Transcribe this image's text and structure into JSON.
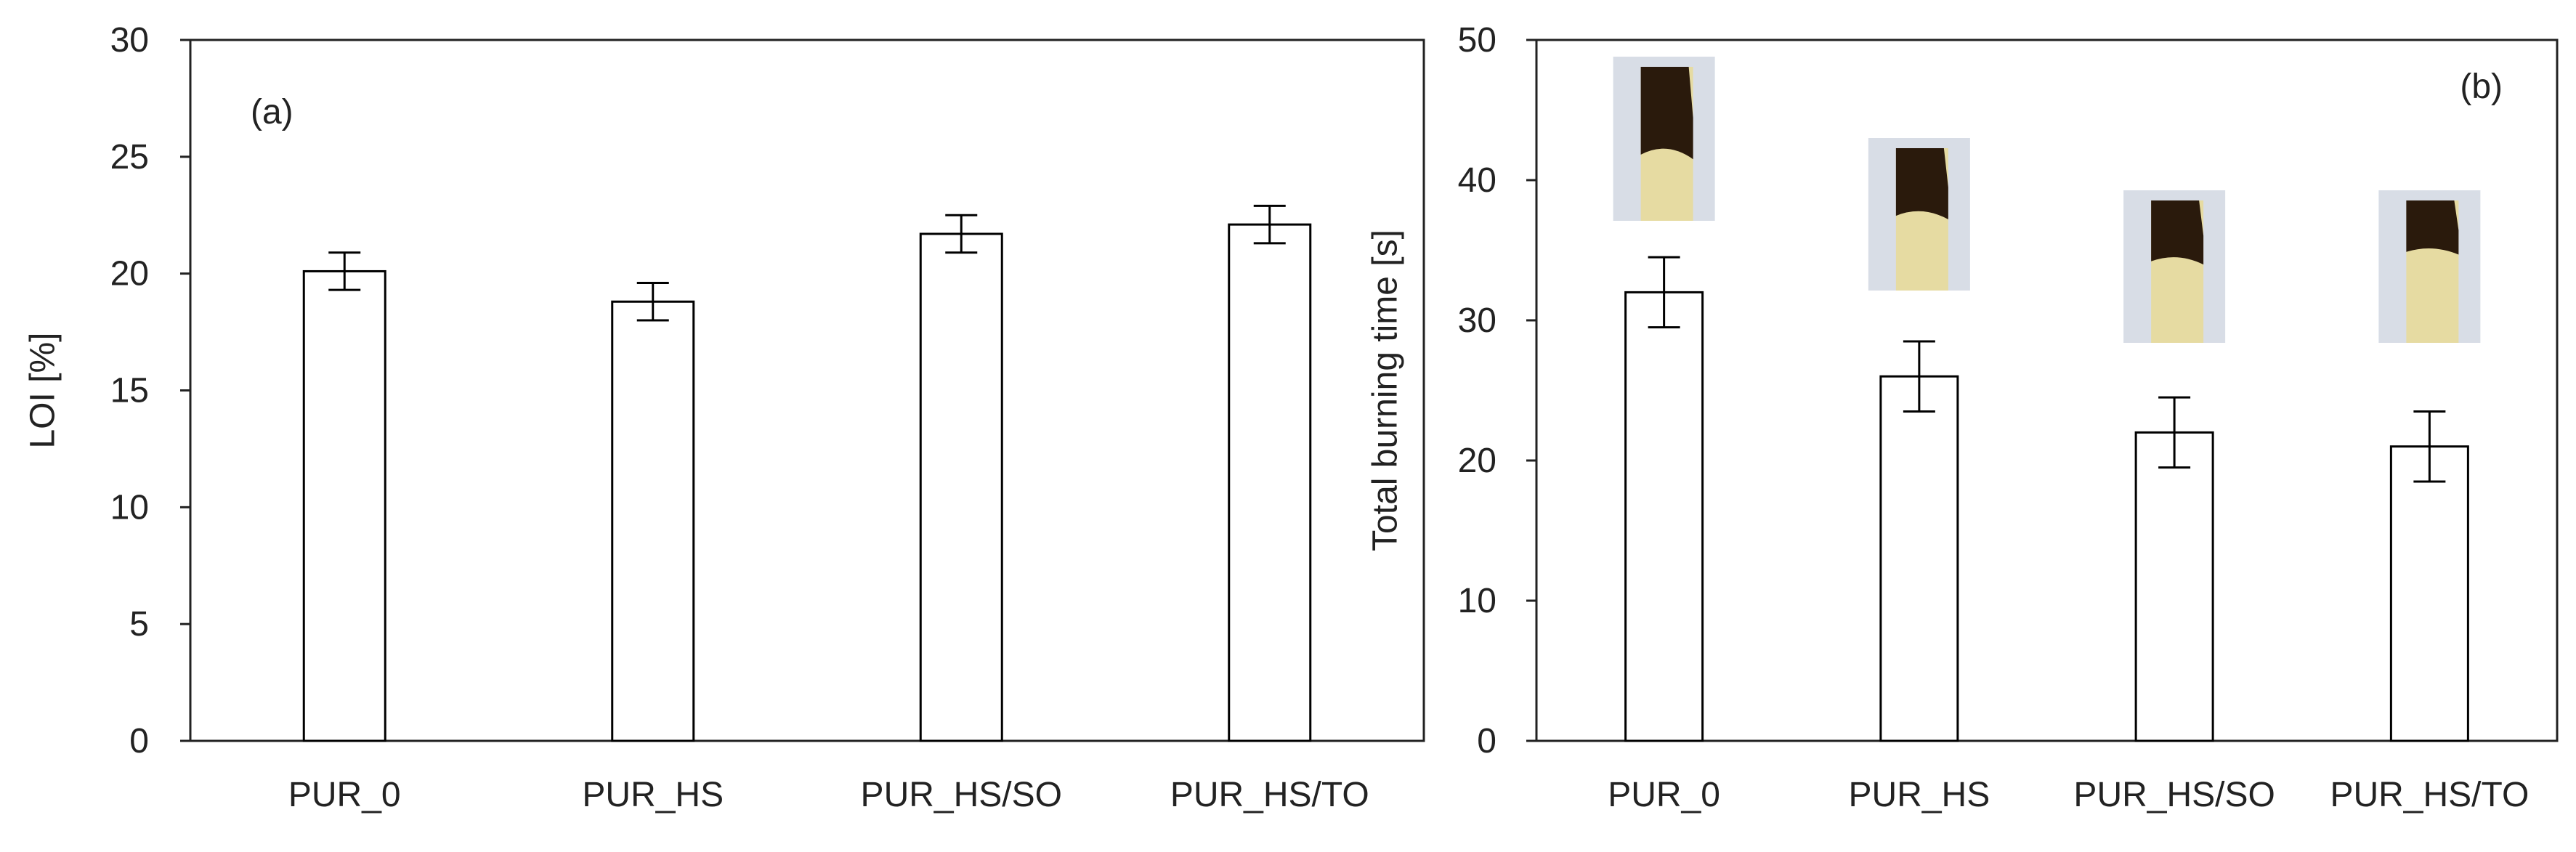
{
  "chart_data": [
    {
      "type": "bar",
      "panel_label": "(a)",
      "title": "",
      "xlabel": "",
      "ylabel": "LOI [%]",
      "categories": [
        "PUR_0",
        "PUR_HS",
        "PUR_HS/SO",
        "PUR_HS/TO"
      ],
      "values": [
        20.1,
        18.8,
        21.7,
        22.1
      ],
      "errors": [
        0.8,
        0.8,
        0.8,
        0.8
      ],
      "ylim": [
        0,
        30
      ],
      "yticks": [
        0,
        5,
        10,
        15,
        20,
        25,
        30
      ],
      "grid": false,
      "bar_fill": "#ffffff",
      "bar_stroke": "#000000"
    },
    {
      "type": "bar",
      "panel_label": "(b)",
      "title": "",
      "xlabel": "",
      "ylabel": "Total burning time [s]",
      "categories": [
        "PUR_0",
        "PUR_HS",
        "PUR_HS/SO",
        "PUR_HS/TO"
      ],
      "values": [
        32,
        26,
        22,
        21
      ],
      "errors": [
        2.5,
        2.5,
        2.5,
        2.5
      ],
      "ylim": [
        0,
        50
      ],
      "yticks": [
        0,
        10,
        20,
        30,
        40,
        50
      ],
      "grid": false,
      "bar_fill": "#ffffff",
      "bar_stroke": "#000000",
      "sample_images": [
        {
          "category": "PUR_0",
          "burn_fraction": 0.6
        },
        {
          "category": "PUR_HS",
          "burn_fraction": 0.5
        },
        {
          "category": "PUR_HS/SO",
          "burn_fraction": 0.45
        },
        {
          "category": "PUR_HS/TO",
          "burn_fraction": 0.38
        }
      ]
    }
  ],
  "colors": {
    "foam": "#e6dba2",
    "char": "#2a1a0c",
    "photo_background": "#d8dde6"
  }
}
